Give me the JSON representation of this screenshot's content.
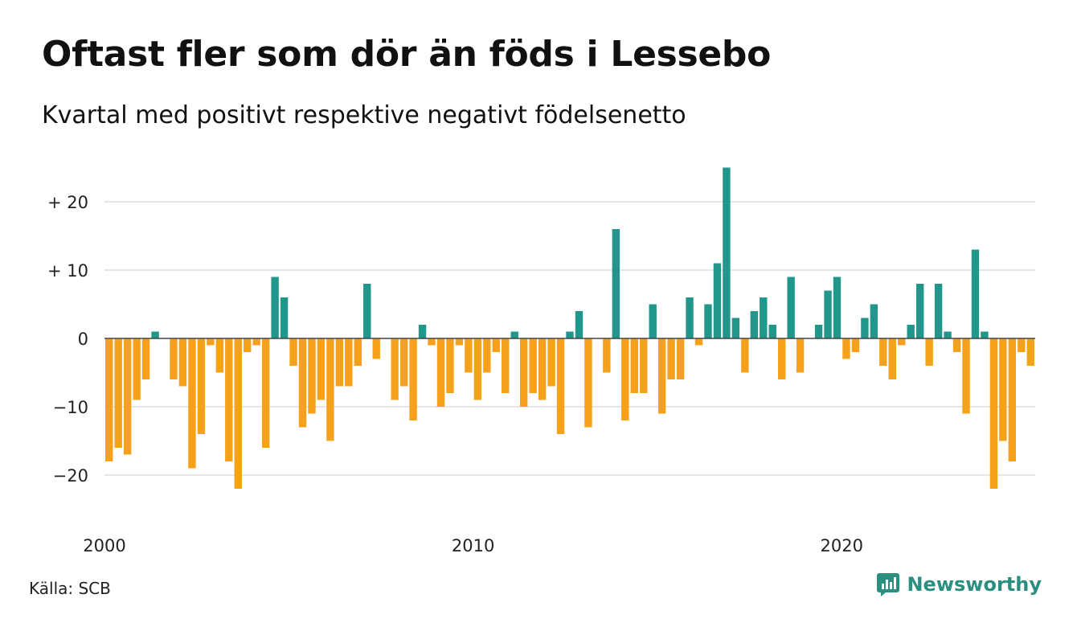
{
  "title": "Oftast fler som dör än föds i Lessebo",
  "subtitle": "Kvartal med positivt respektive negativt födelsenetto",
  "source": "Källa: SCB",
  "brand": {
    "name": "Newsworthy",
    "logo_icon": "newsworthy-chart-bubble-icon"
  },
  "colors": {
    "positive": "#21968a",
    "negative": "#f5a11c",
    "grid": "#dddddd",
    "zero": "#444444"
  },
  "chart_data": {
    "type": "bar",
    "x_start": "2000 Q1",
    "x_tick_labels": [
      "2000",
      "2010",
      "2020"
    ],
    "y_tick_labels": [
      "+ 20",
      "+ 10",
      "0",
      "−10",
      "−20"
    ],
    "y_ticks": [
      20,
      10,
      0,
      -10,
      -20
    ],
    "ylim": [
      -25,
      25
    ],
    "grid": true,
    "values": [
      -18,
      -16,
      -17,
      -9,
      -6,
      1,
      0,
      -6,
      -7,
      -19,
      -14,
      -1,
      -5,
      -18,
      -22,
      -2,
      -1,
      -16,
      9,
      6,
      -4,
      -13,
      -11,
      -9,
      -15,
      -7,
      -7,
      -4,
      8,
      -3,
      0,
      -9,
      -7,
      -12,
      2,
      -1,
      -10,
      -8,
      -1,
      -5,
      -9,
      -5,
      -2,
      -8,
      1,
      -10,
      -8,
      -9,
      -7,
      -14,
      1,
      4,
      -13,
      0,
      -5,
      16,
      -12,
      -8,
      -8,
      5,
      -11,
      -6,
      -6,
      6,
      -1,
      5,
      11,
      25,
      3,
      -5,
      4,
      6,
      2,
      -6,
      9,
      -5,
      0,
      2,
      7,
      9,
      -3,
      -2,
      3,
      5,
      -4,
      -6,
      -1,
      2,
      8,
      -4,
      8,
      1,
      -2,
      -11,
      13,
      1,
      -22,
      -15,
      -18,
      -2,
      -4
    ]
  }
}
